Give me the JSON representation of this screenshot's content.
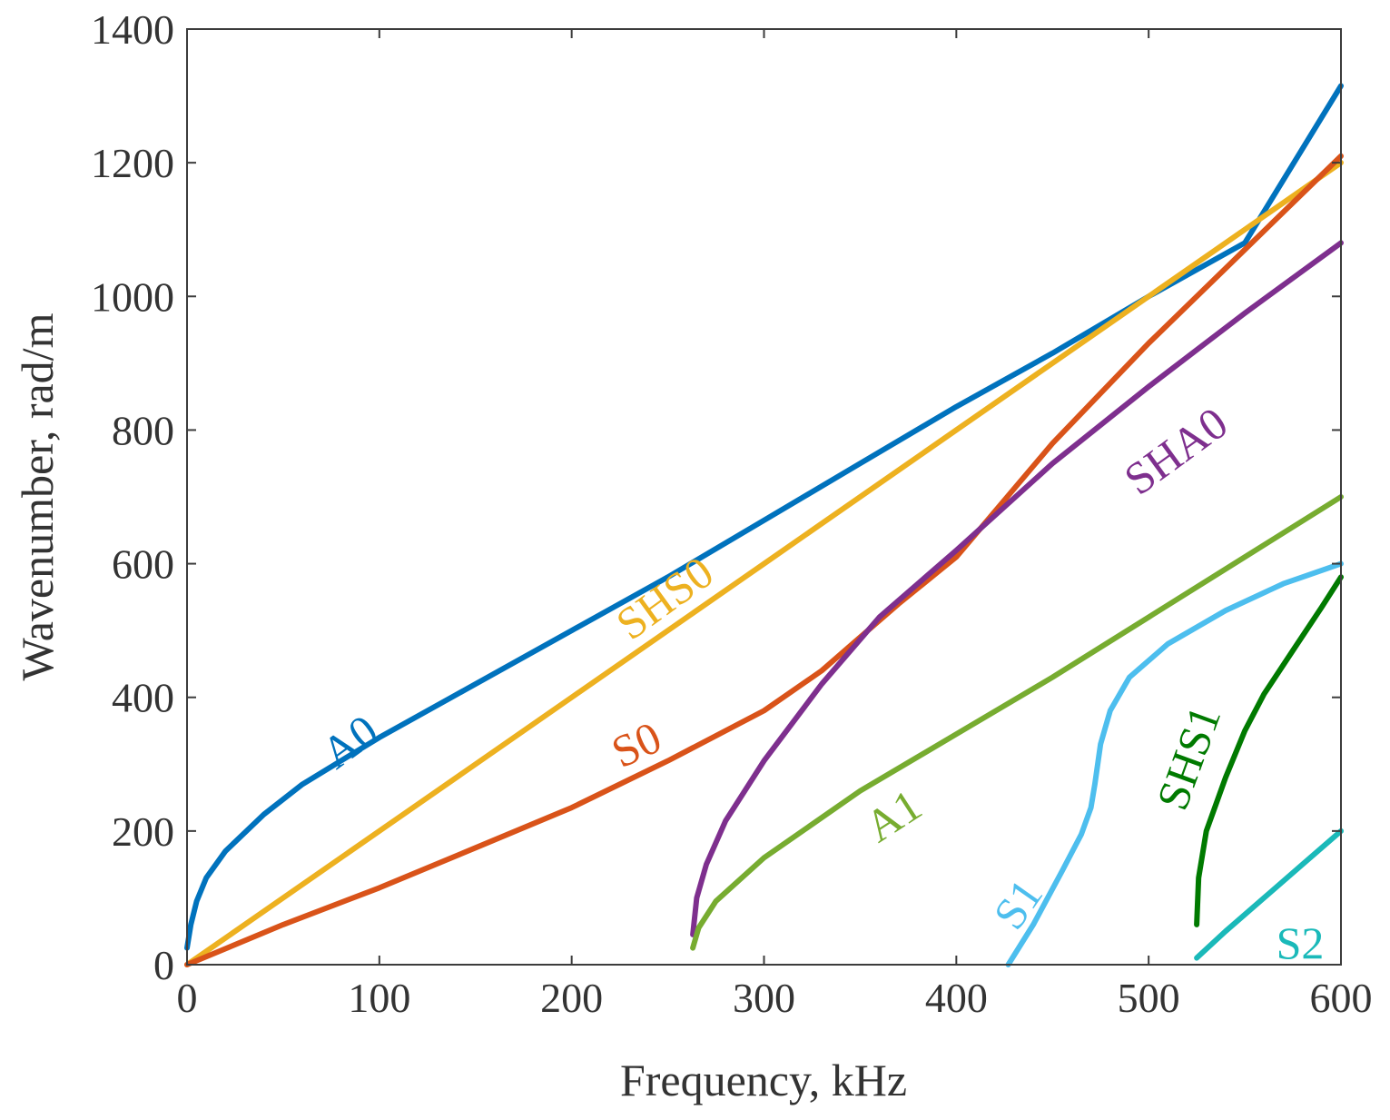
{
  "chart_data": {
    "type": "line",
    "title": "",
    "xlabel": "Frequency, kHz",
    "ylabel": "Wavenumber, rad/m",
    "xlim": [
      0,
      600
    ],
    "ylim": [
      0,
      1400
    ],
    "xticks": [
      0,
      100,
      200,
      300,
      400,
      500,
      600
    ],
    "yticks": [
      0,
      200,
      400,
      600,
      800,
      1000,
      1200,
      1400
    ],
    "grid": false,
    "series": [
      {
        "name": "A0",
        "label": "A0",
        "color": "#0072BD",
        "x": [
          0,
          2,
          5,
          10,
          20,
          40,
          60,
          100,
          150,
          200,
          250,
          300,
          350,
          400,
          450,
          500,
          550,
          600
        ],
        "y": [
          25,
          60,
          95,
          130,
          170,
          225,
          270,
          340,
          420,
          500,
          580,
          665,
          750,
          835,
          915,
          1000,
          1080,
          1315
        ]
      },
      {
        "name": "SHS0",
        "label": "SHS0",
        "color": "#EDB120",
        "x": [
          0,
          100,
          200,
          300,
          400,
          500,
          600
        ],
        "y": [
          0,
          200,
          400,
          600,
          800,
          1000,
          1200
        ]
      },
      {
        "name": "S0",
        "label": "S0",
        "color": "#D95319",
        "x": [
          0,
          50,
          100,
          150,
          200,
          250,
          300,
          330,
          350,
          370,
          400,
          450,
          500,
          550,
          600
        ],
        "y": [
          0,
          60,
          115,
          175,
          235,
          305,
          380,
          440,
          490,
          540,
          610,
          780,
          930,
          1070,
          1210
        ]
      },
      {
        "name": "SHA0",
        "label": "SHA0",
        "color": "#7E2F8E",
        "x": [
          263,
          265,
          270,
          280,
          300,
          330,
          360,
          400,
          450,
          500,
          550,
          600
        ],
        "y": [
          45,
          100,
          150,
          215,
          305,
          420,
          520,
          620,
          750,
          865,
          975,
          1080
        ]
      },
      {
        "name": "A1",
        "label": "A1",
        "color": "#77AC30",
        "x": [
          263,
          266,
          275,
          300,
          350,
          400,
          450,
          500,
          550,
          600
        ],
        "y": [
          25,
          55,
          95,
          160,
          260,
          345,
          430,
          520,
          610,
          700
        ]
      },
      {
        "name": "S1",
        "label": "S1",
        "color": "#4DBEEE",
        "x": [
          427,
          440,
          455,
          465,
          470,
          472,
          475,
          480,
          490,
          510,
          540,
          570,
          600
        ],
        "y": [
          0,
          60,
          140,
          195,
          235,
          270,
          330,
          380,
          430,
          480,
          530,
          570,
          600
        ]
      },
      {
        "name": "SHS1",
        "label": "SHS1",
        "color": "#007A00",
        "x": [
          525,
          526,
          530,
          540,
          550,
          560,
          575,
          590,
          600
        ],
        "y": [
          60,
          130,
          200,
          280,
          350,
          405,
          470,
          535,
          580
        ]
      },
      {
        "name": "S2",
        "label": "S2",
        "color": "#1AB9B9",
        "x": [
          525,
          540,
          560,
          580,
          600
        ],
        "y": [
          10,
          50,
          100,
          150,
          200
        ]
      }
    ]
  }
}
